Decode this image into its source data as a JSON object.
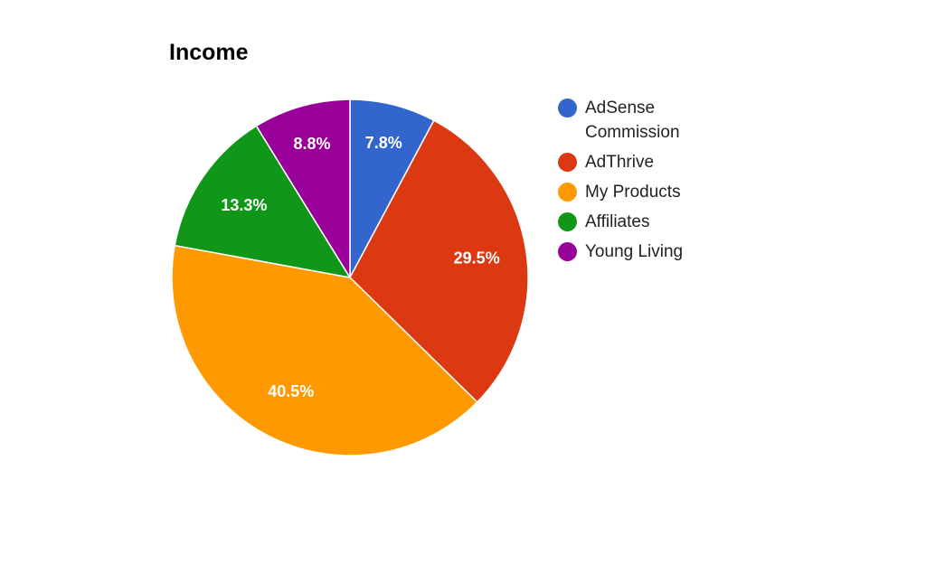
{
  "chart_data": {
    "type": "pie",
    "title": "Income",
    "slices": [
      {
        "name": "AdSense Commission",
        "value": 7.8,
        "label": "7.8%",
        "color": "#3366cc",
        "legend_lines": [
          "AdSense",
          "Commission"
        ]
      },
      {
        "name": "AdThrive",
        "value": 29.5,
        "label": "29.5%",
        "color": "#dc3912",
        "legend_lines": [
          "AdThrive"
        ]
      },
      {
        "name": "My Products",
        "value": 40.5,
        "label": "40.5%",
        "color": "#ff9900",
        "legend_lines": [
          "My Products"
        ]
      },
      {
        "name": "Affiliates",
        "value": 13.3,
        "label": "13.3%",
        "color": "#109618",
        "legend_lines": [
          "Affiliates"
        ]
      },
      {
        "name": "Young Living",
        "value": 8.8,
        "label": "8.8%",
        "color": "#990099",
        "legend_lines": [
          "Young Living"
        ]
      }
    ],
    "legend_position": "right",
    "start_angle": "top",
    "direction": "clockwise"
  }
}
